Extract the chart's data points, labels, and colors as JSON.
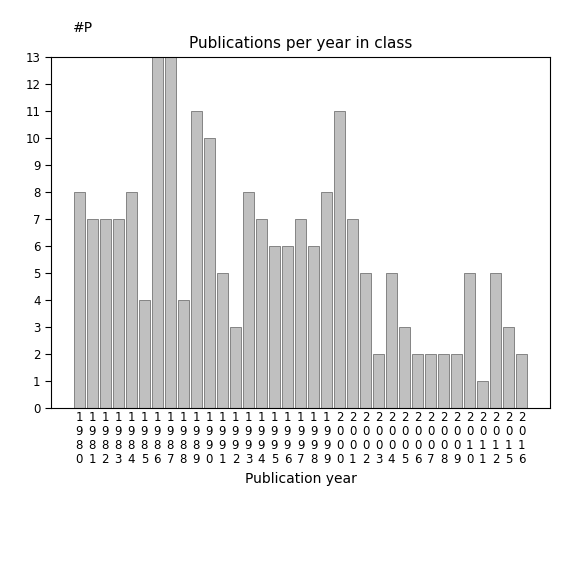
{
  "title": "Publications per year in class",
  "xlabel": "Publication year",
  "ylabel": "#P",
  "bar_color": "#c0c0c0",
  "bar_edge_color": "#606060",
  "categories": [
    "1980",
    "1981",
    "1982",
    "1983",
    "1984",
    "1985",
    "1986",
    "1987",
    "1988",
    "1989",
    "1990",
    "1991",
    "1992",
    "1993",
    "1994",
    "1995",
    "1996",
    "1997",
    "1998",
    "1999",
    "2000",
    "2001",
    "2002",
    "2003",
    "2004",
    "2005",
    "2006",
    "2007",
    "2008",
    "2009",
    "2010",
    "2011",
    "2012",
    "2015",
    "2016"
  ],
  "values": [
    8,
    7,
    7,
    7,
    8,
    4,
    13,
    13,
    4,
    11,
    10,
    5,
    3,
    8,
    7,
    6,
    6,
    7,
    6,
    8,
    11,
    7,
    5,
    2,
    5,
    3,
    2,
    2,
    2,
    2,
    5,
    1,
    5,
    3,
    2
  ],
  "ylim": [
    0,
    13
  ],
  "yticks": [
    0,
    1,
    2,
    3,
    4,
    5,
    6,
    7,
    8,
    9,
    10,
    11,
    12,
    13
  ],
  "background_color": "#ffffff",
  "title_fontsize": 11,
  "label_fontsize": 10,
  "tick_fontsize": 8.5
}
